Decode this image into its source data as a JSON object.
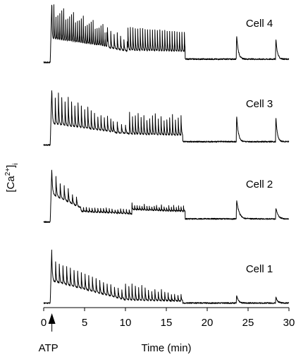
{
  "chart_data": {
    "type": "line",
    "ylabel_main": "[Ca",
    "ylabel_sup": "2+",
    "ylabel_close": "]",
    "ylabel_sub": "i",
    "xlabel": "Time (min)",
    "xlim": [
      0,
      30
    ],
    "x_ticks": [
      0,
      5,
      10,
      15,
      20,
      25,
      30
    ],
    "x_tick_labels": [
      "0",
      "5",
      "10",
      "15",
      "20",
      "25",
      "30"
    ],
    "stimulus": {
      "label": "ATP",
      "time": 1.0
    },
    "series": [
      {
        "name": "Cell 4",
        "baseline": 0.05,
        "onset": 0.8,
        "peak": 1.0,
        "phases": [
          {
            "from": 1.0,
            "to": 7.8,
            "period": 0.24,
            "floor": 0.42,
            "top": 1.0,
            "end_floor": 0.3,
            "end_top": 0.62
          },
          {
            "from": 7.8,
            "to": 10.3,
            "period": 0.4,
            "floor": 0.28,
            "top": 0.58,
            "end_floor": 0.22,
            "end_top": 0.42
          },
          {
            "from": 10.3,
            "to": 17.3,
            "period": 0.3,
            "floor": 0.24,
            "top": 0.64,
            "end_floor": 0.22,
            "end_top": 0.56
          }
        ],
        "tail_level": 0.1,
        "transients": [
          {
            "t": 23.6,
            "amp": 0.38,
            "width": 0.2
          },
          {
            "t": 28.4,
            "amp": 0.32,
            "width": 0.18
          }
        ]
      },
      {
        "name": "Cell 3",
        "baseline": 0.05,
        "onset": 0.8,
        "peak": 0.95,
        "phases": [
          {
            "from": 1.0,
            "to": 8.5,
            "period": 0.4,
            "floor": 0.38,
            "top": 0.9,
            "end_floor": 0.25,
            "end_top": 0.45
          },
          {
            "from": 8.5,
            "to": 10.5,
            "period": 0.5,
            "floor": 0.24,
            "top": 0.42,
            "end_floor": 0.22,
            "end_top": 0.36
          },
          {
            "from": 10.5,
            "to": 17.0,
            "period": 0.35,
            "floor": 0.22,
            "top": 0.55,
            "end_floor": 0.2,
            "end_top": 0.5
          }
        ],
        "tail_level": 0.1,
        "transients": [
          {
            "t": 23.6,
            "amp": 0.4,
            "width": 0.2
          },
          {
            "t": 28.4,
            "amp": 0.38,
            "width": 0.18
          }
        ]
      },
      {
        "name": "Cell 2",
        "baseline": 0.05,
        "onset": 0.8,
        "peak": 0.95,
        "phases": [
          {
            "from": 1.0,
            "to": 4.5,
            "period": 0.5,
            "floor": 0.5,
            "top": 0.85,
            "end_floor": 0.28,
            "end_top": 0.4
          },
          {
            "from": 4.5,
            "to": 10.8,
            "period": 0.35,
            "floor": 0.22,
            "top": 0.3,
            "end_floor": 0.18,
            "end_top": 0.26
          },
          {
            "from": 10.8,
            "to": 17.3,
            "period": 0.3,
            "floor": 0.25,
            "top": 0.35,
            "end_floor": 0.22,
            "end_top": 0.3
          }
        ],
        "tail_level": 0.1,
        "transients": [
          {
            "t": 23.6,
            "amp": 0.3,
            "width": 0.3
          },
          {
            "t": 28.4,
            "amp": 0.18,
            "width": 0.25
          }
        ]
      },
      {
        "name": "Cell 1",
        "baseline": 0.05,
        "onset": 0.8,
        "peak": 0.95,
        "phases": [
          {
            "from": 1.0,
            "to": 10.0,
            "period": 0.45,
            "floor": 0.4,
            "top": 0.75,
            "end_floor": 0.1,
            "end_top": 0.25
          },
          {
            "from": 10.0,
            "to": 17.0,
            "period": 0.4,
            "floor": 0.1,
            "top": 0.38,
            "end_floor": 0.08,
            "end_top": 0.18
          }
        ],
        "tail_level": 0.05,
        "transients": [
          {
            "t": 23.6,
            "amp": 0.12,
            "width": 0.2
          },
          {
            "t": 28.4,
            "amp": 0.1,
            "width": 0.2
          }
        ]
      }
    ]
  }
}
